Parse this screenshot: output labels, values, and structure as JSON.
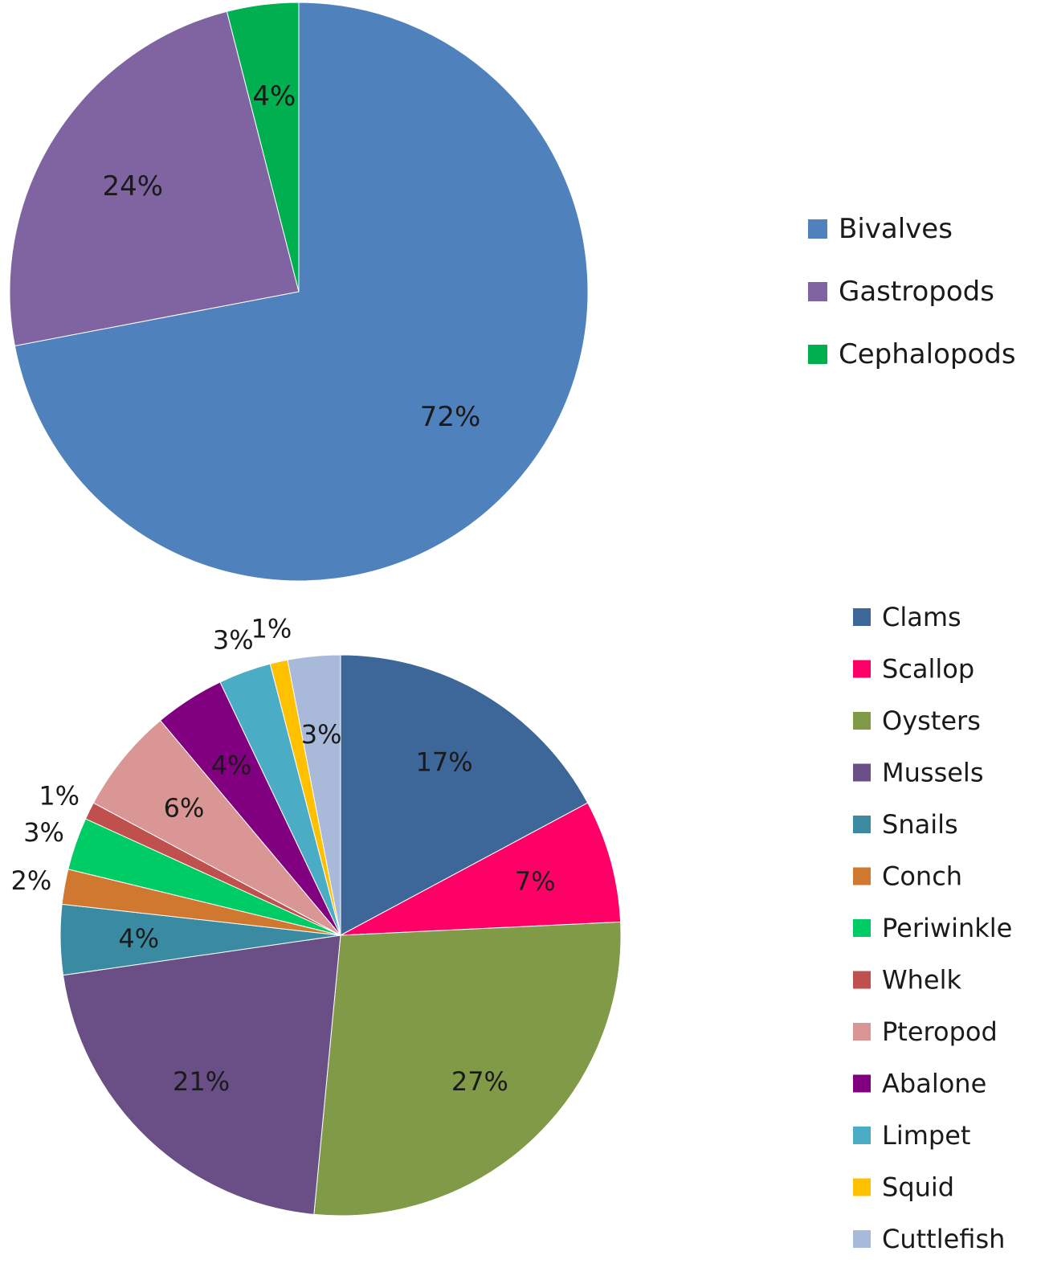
{
  "chart_data": [
    {
      "type": "pie",
      "legend_position": "right",
      "slices": [
        {
          "label": "Bivalves",
          "value": 72,
          "value_label": "72%",
          "color": "#4F81BD"
        },
        {
          "label": "Gastropods",
          "value": 24,
          "value_label": "24%",
          "color": "#8064A2"
        },
        {
          "label": "Cephalopods",
          "value": 4,
          "value_label": "4%",
          "color": "#00B050"
        }
      ]
    },
    {
      "type": "pie",
      "legend_position": "right",
      "slices": [
        {
          "label": "Clams",
          "value": 17,
          "value_label": "17%",
          "color": "#3D6699"
        },
        {
          "label": "Scallop",
          "value": 7,
          "value_label": "7%",
          "color": "#FF0066"
        },
        {
          "label": "Oysters",
          "value": 27,
          "value_label": "27%",
          "color": "#809A48"
        },
        {
          "label": "Mussels",
          "value": 21,
          "value_label": "21%",
          "color": "#6A4E86"
        },
        {
          "label": "Snails",
          "value": 4,
          "value_label": "4%",
          "color": "#3A8BA2"
        },
        {
          "label": "Conch",
          "value": 2,
          "value_label": "2%",
          "color": "#D07830"
        },
        {
          "label": "Periwinkle",
          "value": 3,
          "value_label": "3%",
          "color": "#00CC66"
        },
        {
          "label": "Whelk",
          "value": 1,
          "value_label": "1%",
          "color": "#C0504D"
        },
        {
          "label": "Pteropod",
          "value": 6,
          "value_label": "6%",
          "color": "#D99694"
        },
        {
          "label": "Abalone",
          "value": 4,
          "value_label": "4%",
          "color": "#800080"
        },
        {
          "label": "Limpet",
          "value": 3,
          "value_label": "3%",
          "color": "#4BACC6"
        },
        {
          "label": "Squid",
          "value": 1,
          "value_label": "1%",
          "color": "#FFC000"
        },
        {
          "label": "Cuttlefish",
          "value": 3,
          "value_label": "3%",
          "color": "#A9B9D9"
        }
      ]
    }
  ]
}
